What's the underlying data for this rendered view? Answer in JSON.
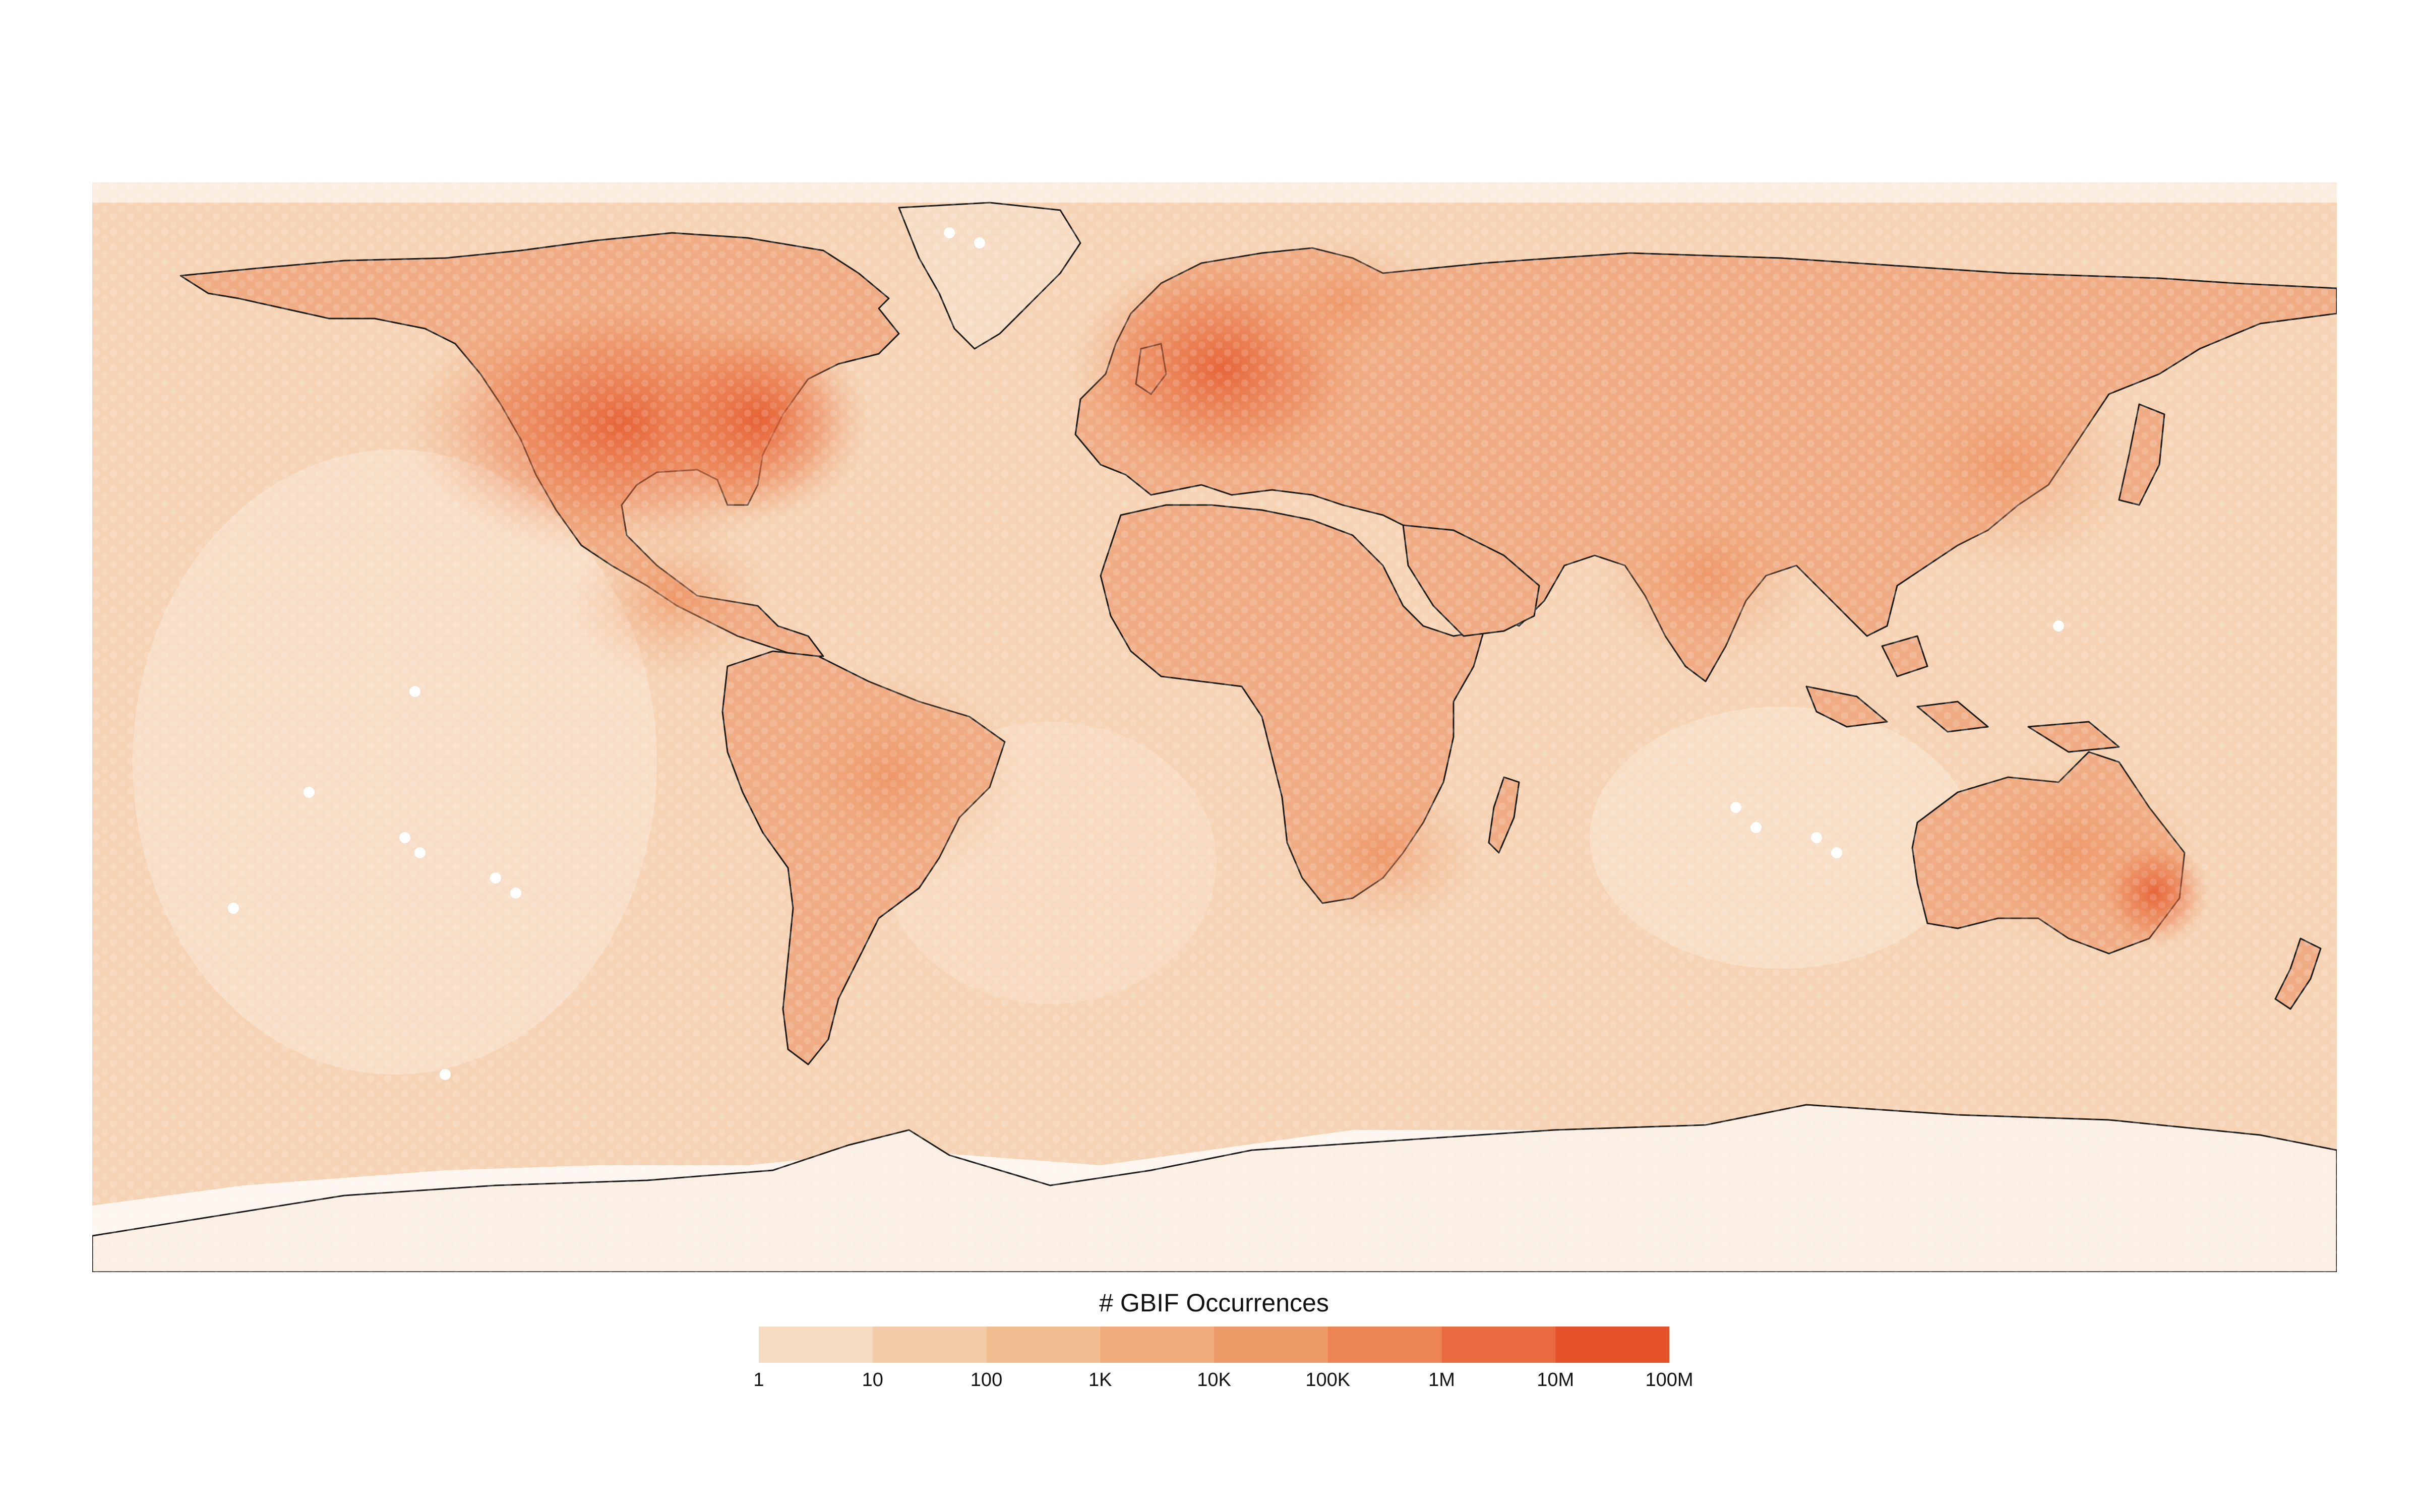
{
  "legend": {
    "title": "# GBIF Occurrences",
    "ticks": [
      "1",
      "10",
      "100",
      "1K",
      "10K",
      "100K",
      "1M",
      "10M",
      "100M"
    ],
    "colors": [
      "#f8e6d4",
      "#f6dbc1",
      "#f4cca8",
      "#f2bd91",
      "#f0ac7c",
      "#ee9a68",
      "#ec8454",
      "#e96a3e",
      "#e6532a"
    ]
  },
  "map": {
    "projection": "equirectangular",
    "cell_shape": "hexagon",
    "coastline_color": "#1a1a1a",
    "ocean_tint": "#f6d4b6",
    "hotspots": [
      "United States",
      "Europe",
      "Central America",
      "Brazil",
      "South Africa",
      "India",
      "Australia"
    ]
  }
}
